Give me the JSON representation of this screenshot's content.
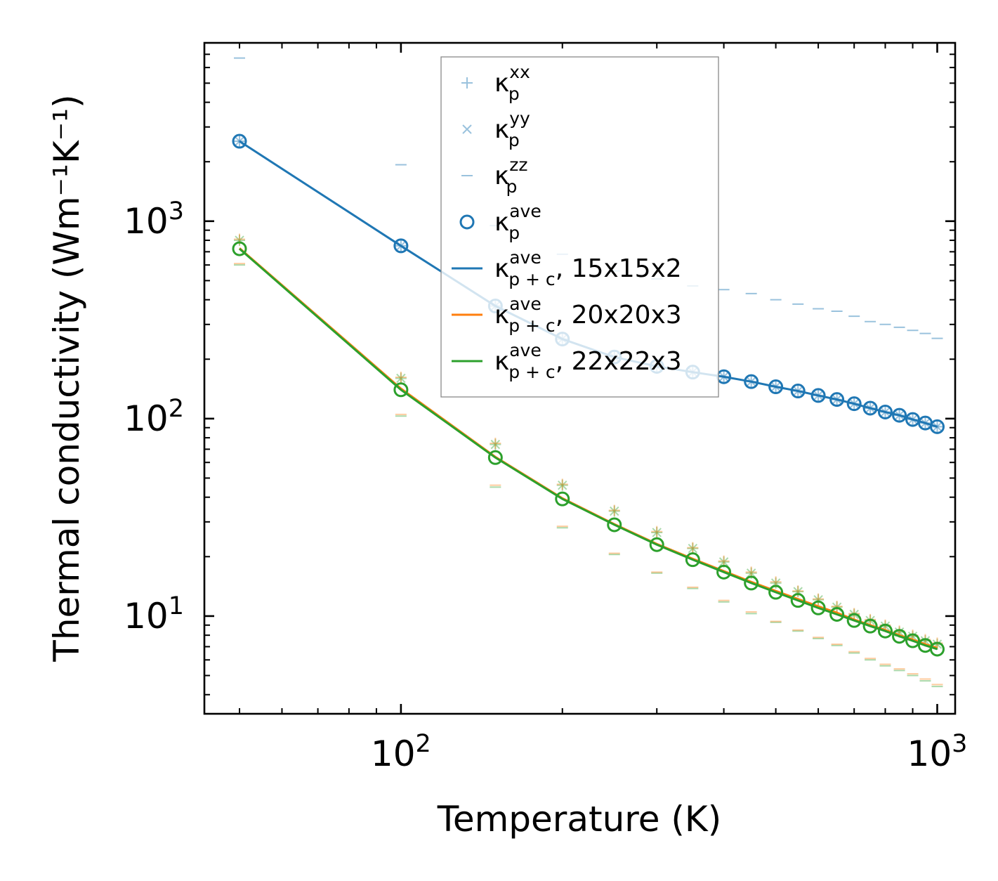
{
  "chart_data": {
    "type": "scatter",
    "xscale": "log",
    "yscale": "log",
    "xlabel": "Temperature (K)",
    "ylabel": "Thermal conductivity (Wm⁻¹K⁻¹)",
    "xlim": [
      43,
      1080
    ],
    "ylim": [
      3.2,
      8000
    ],
    "x_ticks": [
      {
        "value": 100,
        "base": "10",
        "exp": "2"
      },
      {
        "value": 1000,
        "base": "10",
        "exp": "3"
      }
    ],
    "y_ticks": [
      {
        "value": 10,
        "base": "10",
        "exp": "1"
      },
      {
        "value": 100,
        "base": "10",
        "exp": "2"
      },
      {
        "value": 1000,
        "base": "10",
        "exp": "3"
      }
    ],
    "temperatures": [
      50,
      100,
      150,
      200,
      250,
      300,
      350,
      400,
      450,
      500,
      550,
      600,
      650,
      700,
      750,
      800,
      850,
      900,
      950,
      1000
    ],
    "series": [
      {
        "name": "kp_xx_15",
        "legend_main": "κ",
        "legend_sub": "p",
        "legend_sup": "xx",
        "legend_suffix": "",
        "marker": "plus",
        "color": "#1f77b4",
        "alpha": 0.45,
        "values": [
          2540,
          750,
          372,
          253,
          205,
          184,
          172,
          163,
          154,
          145,
          138,
          131,
          125,
          119,
          113,
          108,
          104,
          99,
          95,
          91
        ]
      },
      {
        "name": "kp_yy_15",
        "legend_main": "κ",
        "legend_sub": "p",
        "legend_sup": "yy",
        "legend_suffix": "",
        "marker": "x",
        "color": "#1f77b4",
        "alpha": 0.45,
        "values": [
          2540,
          750,
          372,
          253,
          205,
          184,
          172,
          163,
          154,
          145,
          138,
          131,
          125,
          119,
          113,
          108,
          104,
          99,
          95,
          91
        ]
      },
      {
        "name": "kp_zz_15",
        "legend_main": "κ",
        "legend_sub": "p",
        "legend_sup": "zz",
        "legend_suffix": "",
        "marker": "dash",
        "color": "#1f77b4",
        "alpha": 0.45,
        "values": [
          6700,
          1930,
          950,
          680,
          560,
          510,
          470,
          450,
          430,
          400,
          380,
          360,
          350,
          330,
          310,
          300,
          290,
          280,
          270,
          255
        ]
      },
      {
        "name": "kp_ave_15",
        "legend_main": "κ",
        "legend_sub": "p",
        "legend_sup": "ave",
        "legend_suffix": "",
        "marker": "circle",
        "color": "#1f77b4",
        "alpha": 1,
        "values": [
          2540,
          750,
          372,
          253,
          205,
          184,
          172,
          163,
          154,
          145,
          138,
          131,
          125,
          119,
          113,
          108,
          104,
          99,
          95,
          91
        ]
      },
      {
        "name": "kpc_ave_15",
        "legend_main": "κ",
        "legend_sub": "p + c",
        "legend_sup": "ave",
        "legend_suffix": ", 15x15x2",
        "marker": "line",
        "color": "#1f77b4",
        "alpha": 1,
        "values": [
          2540,
          750,
          372,
          253,
          205,
          184,
          172,
          163,
          154,
          145,
          138,
          131,
          125,
          119,
          113,
          108,
          104,
          99,
          95,
          91
        ]
      },
      {
        "name": "kpc_ave_20",
        "legend_main": "κ",
        "legend_sub": "p + c",
        "legend_sup": "ave",
        "legend_suffix": ", 20x20x3",
        "marker": "line",
        "color": "#ff7f0e",
        "alpha": 1,
        "values": [
          730,
          142,
          64,
          39.5,
          29.2,
          23.2,
          19.5,
          16.9,
          14.9,
          13.4,
          12.2,
          11.2,
          10.4,
          9.6,
          9.0,
          8.5,
          8.0,
          7.6,
          7.2,
          6.9
        ]
      },
      {
        "name": "kpc_ave_22",
        "legend_main": "κ",
        "legend_sub": "p + c",
        "legend_sup": "ave",
        "legend_suffix": ", 22x22x3",
        "marker": "line",
        "color": "#2ca02c",
        "alpha": 1,
        "values": [
          725,
          140,
          63.5,
          39.2,
          29.0,
          23.0,
          19.3,
          16.7,
          14.7,
          13.2,
          12.0,
          11.0,
          10.2,
          9.5,
          8.9,
          8.4,
          7.9,
          7.5,
          7.1,
          6.8
        ]
      },
      {
        "name": "kp_xx_22",
        "marker": "plus",
        "color": "#2ca02c",
        "alpha": 0.4,
        "in_legend": false,
        "values": [
          800,
          160,
          74,
          46,
          34,
          26.5,
          22,
          18.8,
          16.5,
          14.7,
          13.3,
          12.1,
          11.1,
          10.2,
          9.5,
          8.9,
          8.3,
          7.9,
          7.5,
          7.2
        ]
      },
      {
        "name": "kp_yy_22",
        "marker": "x",
        "color": "#2ca02c",
        "alpha": 0.4,
        "in_legend": false,
        "values": [
          800,
          160,
          74,
          46,
          34,
          26.5,
          22,
          18.8,
          16.5,
          14.7,
          13.3,
          12.1,
          11.1,
          10.2,
          9.5,
          8.9,
          8.3,
          7.9,
          7.5,
          7.2
        ]
      },
      {
        "name": "kp_zz_22",
        "marker": "dash",
        "color": "#2ca02c",
        "alpha": 0.4,
        "in_legend": false,
        "values": [
          600,
          103,
          45,
          28,
          20.5,
          16.5,
          13.8,
          11.8,
          10.3,
          9.3,
          8.4,
          7.7,
          7.1,
          6.5,
          6.0,
          5.6,
          5.3,
          5.0,
          4.7,
          4.4
        ]
      },
      {
        "name": "kp_xx_20",
        "marker": "plus",
        "color": "#ff7f0e",
        "alpha": 0.4,
        "in_legend": false,
        "values": [
          810,
          162,
          75,
          46.5,
          34.3,
          26.8,
          22.2,
          19,
          16.7,
          14.9,
          13.4,
          12.2,
          11.2,
          10.3,
          9.6,
          9.0,
          8.4,
          8.0,
          7.6,
          7.3
        ]
      },
      {
        "name": "kp_zz_20",
        "marker": "dash",
        "color": "#ff7f0e",
        "alpha": 0.4,
        "in_legend": false,
        "values": [
          610,
          105,
          46,
          28.5,
          20.8,
          16.7,
          14.0,
          12.0,
          10.5,
          9.4,
          8.5,
          7.8,
          7.2,
          6.6,
          6.1,
          5.7,
          5.4,
          5.1,
          4.8,
          4.5
        ]
      },
      {
        "name": "kp_ave_22",
        "marker": "circle",
        "color": "#2ca02c",
        "alpha": 1,
        "in_legend": false,
        "values": [
          725,
          140,
          63.5,
          39.2,
          29.0,
          23.0,
          19.3,
          16.7,
          14.7,
          13.2,
          12.0,
          11.0,
          10.2,
          9.5,
          8.9,
          8.4,
          7.9,
          7.5,
          7.1,
          6.8
        ]
      }
    ]
  }
}
